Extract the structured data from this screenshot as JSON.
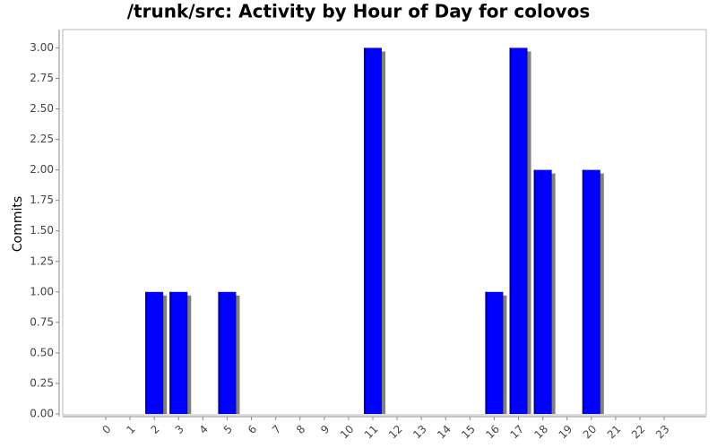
{
  "chart_data": {
    "type": "bar",
    "title": "/trunk/src: Activity by Hour of Day for colovos",
    "y_label": "Commits",
    "categories": [
      "0",
      "1",
      "2",
      "3",
      "4",
      "5",
      "6",
      "7",
      "8",
      "9",
      "10",
      "11",
      "12",
      "13",
      "14",
      "15",
      "16",
      "17",
      "18",
      "19",
      "20",
      "21",
      "22",
      "23"
    ],
    "values": [
      0,
      0,
      1,
      1,
      0,
      1,
      0,
      0,
      0,
      0,
      0,
      3,
      0,
      0,
      0,
      0,
      1,
      3,
      2,
      0,
      2,
      0,
      0,
      0
    ],
    "color": "#0000ff",
    "ylim": [
      0,
      3.15
    ],
    "yticks": [
      {
        "value": 0,
        "label": "0.00"
      },
      {
        "value": 0.25,
        "label": "0.25"
      },
      {
        "value": 0.5,
        "label": "0.50"
      },
      {
        "value": 0.75,
        "label": "0.75"
      },
      {
        "value": 1,
        "label": "1.00"
      },
      {
        "value": 1.25,
        "label": "1.25"
      },
      {
        "value": 1.5,
        "label": "1.50"
      },
      {
        "value": 1.75,
        "label": "1.75"
      },
      {
        "value": 2,
        "label": "2.00"
      },
      {
        "value": 2.25,
        "label": "2.25"
      },
      {
        "value": 2.5,
        "label": "2.50"
      },
      {
        "value": 2.75,
        "label": "2.75"
      },
      {
        "value": 3,
        "label": "3.00"
      }
    ]
  }
}
